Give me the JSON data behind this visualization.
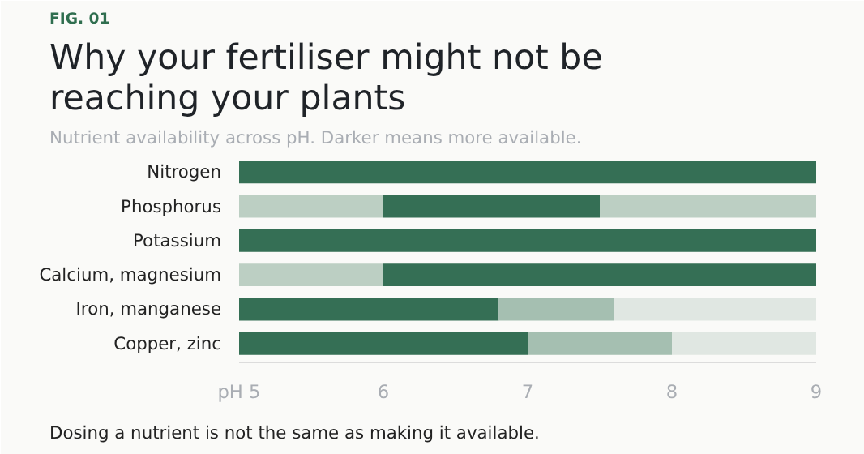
{
  "chart_data": {
    "type": "bar",
    "orientation": "horizontal",
    "title": "Why your fertiliser might not be\nreaching your plants",
    "subtitle": "Nutrient availability across pH. Darker means more available.",
    "annotations": [
      "FIG. 01",
      "Dosing a nutrient is not the same as making it available."
    ],
    "categories": [
      "Nitrogen",
      "Phosphorus",
      "Potassium",
      "Calcium, magnesium",
      "Iron, manganese",
      "Copper, zinc"
    ],
    "series": [
      {
        "colors": [
          "#356f55",
          "#bccfc3",
          "#356f55",
          "#bccfc3",
          "#356f55",
          "#356f55"
        ],
        "base": [
          5,
          5,
          5,
          5,
          5,
          5
        ],
        "values": [
          4,
          1,
          4,
          1,
          1.8,
          2
        ]
      },
      {
        "colors": [
          null,
          "#356f55",
          null,
          "#356f55",
          "#a5bfb1",
          "#a5bfb1"
        ],
        "base": [
          null,
          6,
          null,
          6,
          6.8,
          7
        ],
        "values": [
          null,
          1.5,
          null,
          3,
          0.8,
          1
        ]
      },
      {
        "colors": [
          null,
          "#bccfc3",
          null,
          null,
          "#e0e7e2",
          "#e0e7e2"
        ],
        "base": [
          null,
          7.5,
          null,
          null,
          7.6,
          8
        ],
        "values": [
          null,
          1.5,
          null,
          null,
          1.4,
          1
        ]
      }
    ],
    "xlim": [
      5,
      9
    ],
    "xticks": [
      {
        "value": 5,
        "label": "pH 5"
      },
      6,
      7,
      8,
      9
    ],
    "grid": false
  }
}
